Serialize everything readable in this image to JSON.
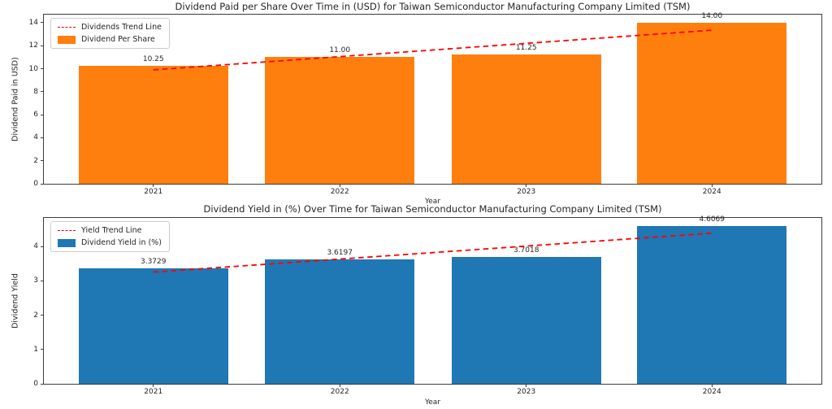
{
  "figure": {
    "background": "#ffffff",
    "trend_color": "#ff0000",
    "text_color": "#262626",
    "spine_color": "#3c3c3c"
  },
  "chart_data": [
    {
      "type": "bar",
      "title": "Dividend Paid per Share Over Time in (USD) for Taiwan Semiconductor Manufacturing Company Limited (TSM)",
      "xlabel": "Year",
      "ylabel": "Dividend Paid in USD)",
      "categories": [
        "2021",
        "2022",
        "2023",
        "2024"
      ],
      "values": [
        10.25,
        11.0,
        11.25,
        14.0
      ],
      "bar_labels": [
        "10.25",
        "11.00",
        "11.25",
        "14.00"
      ],
      "bar_color": "#ff7f0e",
      "ylim": [
        0,
        14.7
      ],
      "y_ticks": [
        0,
        2,
        4,
        6,
        8,
        10,
        12,
        14
      ],
      "grid": false,
      "legend_position": "upper-left",
      "legend": [
        {
          "label": "Dividends Trend Line",
          "type": "line",
          "color": "#ff0000"
        },
        {
          "label": "Dividend Per Share",
          "type": "patch",
          "color": "#ff7f0e"
        }
      ],
      "trend": {
        "name": "Dividends Trend Line",
        "start_value": 9.9,
        "end_value": 13.35
      }
    },
    {
      "type": "bar",
      "title": "Dividend Yield in (%) Over Time for Taiwan Semiconductor Manufacturing Company Limited (TSM)",
      "xlabel": "Year",
      "ylabel": "Dividend Yield",
      "categories": [
        "2021",
        "2022",
        "2023",
        "2024"
      ],
      "values": [
        3.3729,
        3.6197,
        3.7018,
        4.6069
      ],
      "bar_labels": [
        "3.3729",
        "3.6197",
        "3.7018",
        "4.6069"
      ],
      "bar_color": "#1f77b4",
      "ylim": [
        0,
        4.837
      ],
      "y_ticks": [
        0,
        1,
        2,
        3,
        4
      ],
      "grid": false,
      "legend_position": "upper-left",
      "legend": [
        {
          "label": "Yield Trend Line",
          "type": "line",
          "color": "#ff0000"
        },
        {
          "label": "Dividend Yield in (%)",
          "type": "patch",
          "color": "#1f77b4"
        }
      ],
      "trend": {
        "name": "Yield Trend Line",
        "start_value": 3.2577,
        "end_value": 4.3929
      }
    }
  ]
}
